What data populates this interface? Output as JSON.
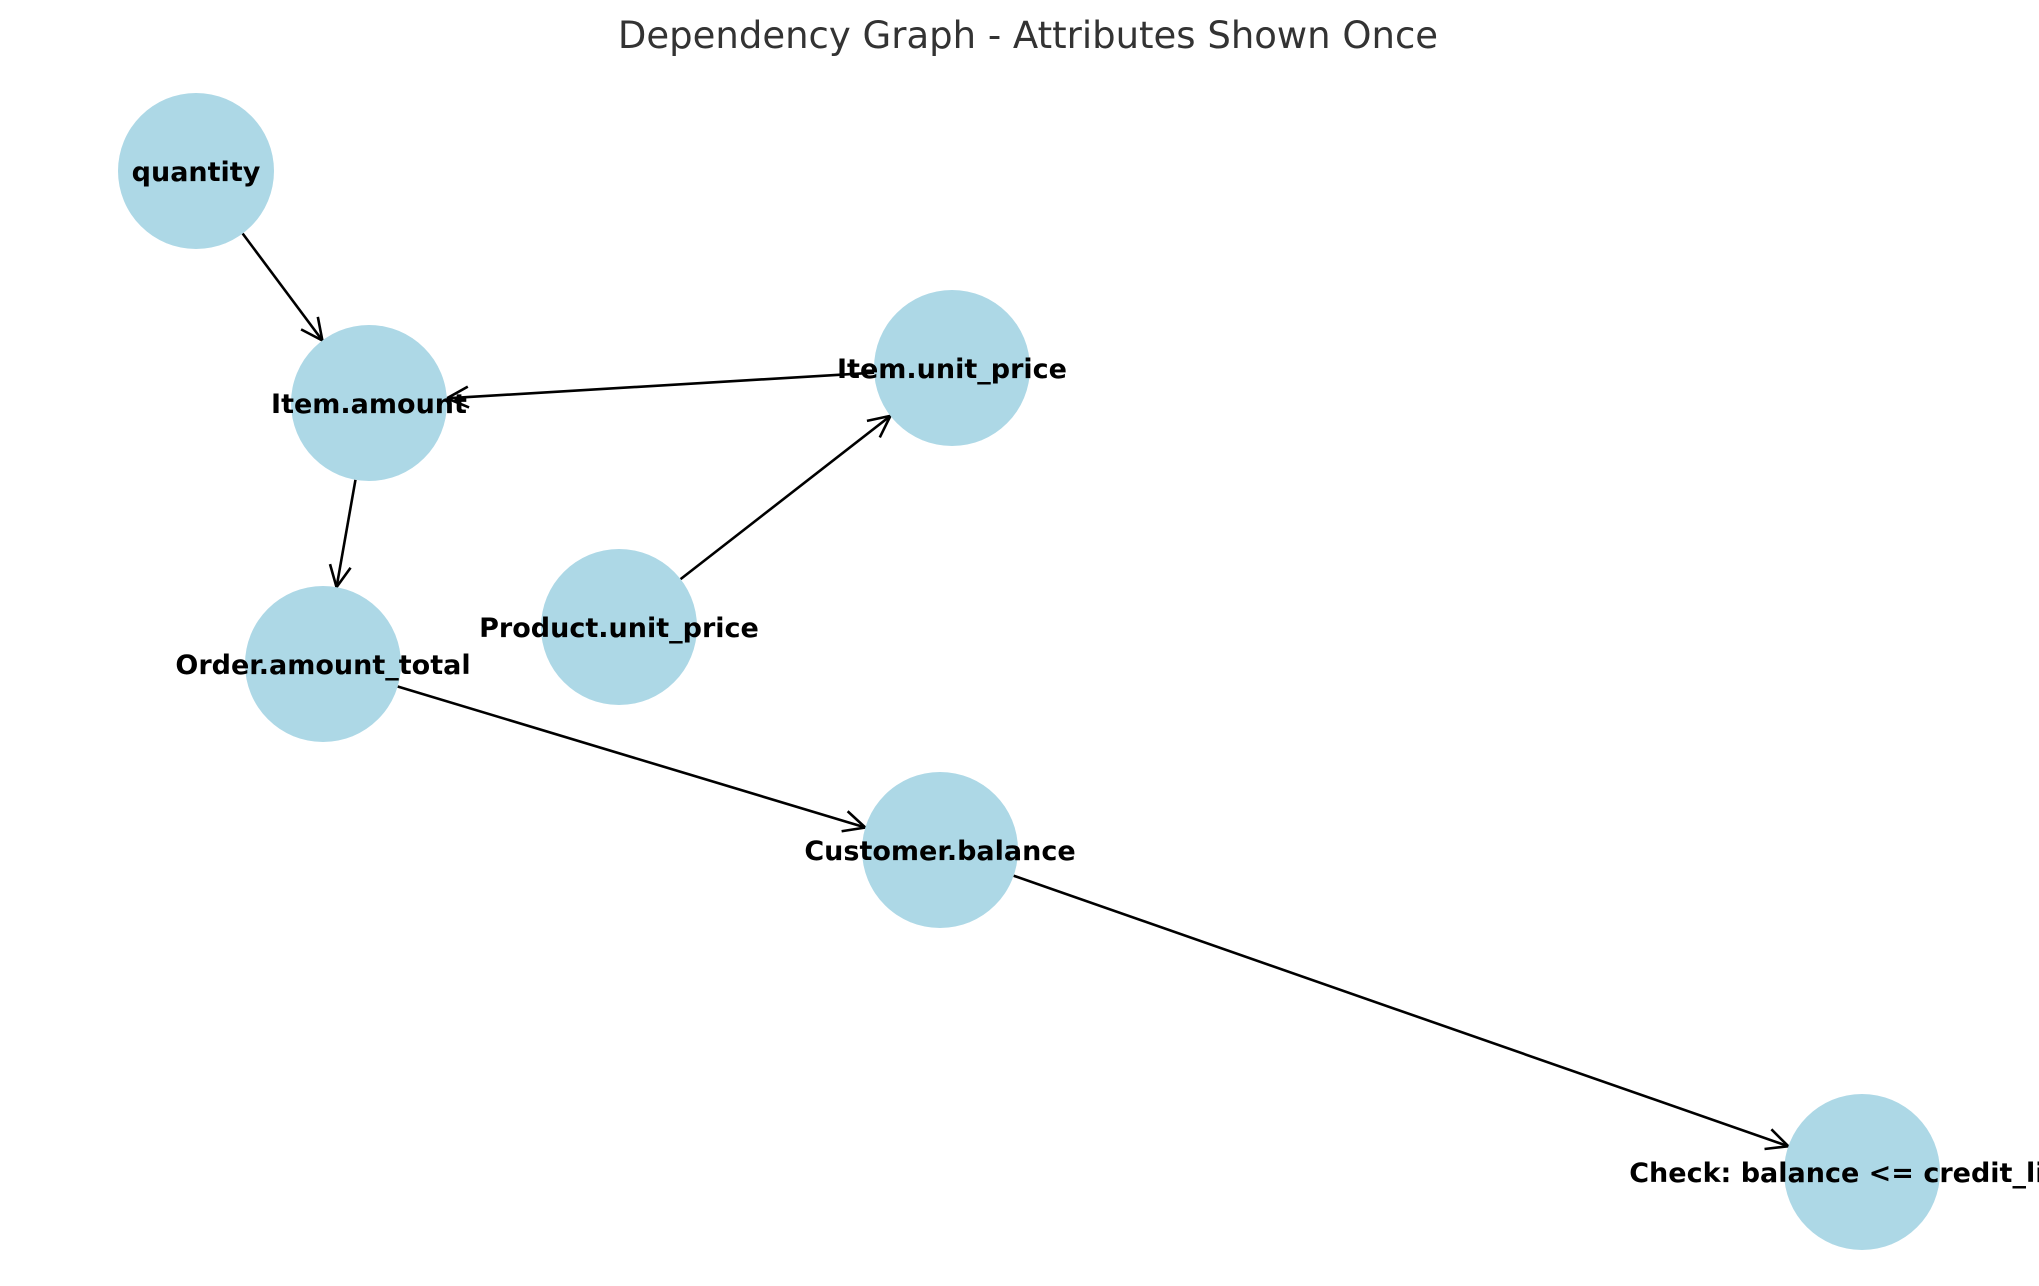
{
  "diagram": {
    "title": "Dependency Graph - Attributes Shown Once",
    "title_color": "#333333",
    "node_color": "#add8e6",
    "edge_color": "#000000",
    "nodes": [
      {
        "id": "quantity",
        "label": "quantity"
      },
      {
        "id": "item_amount",
        "label": "Item.amount"
      },
      {
        "id": "item_unit_price",
        "label": "Item.unit_price"
      },
      {
        "id": "product_unit_price",
        "label": "Product.unit_price"
      },
      {
        "id": "order_amount_total",
        "label": "Order.amount_total"
      },
      {
        "id": "customer_balance",
        "label": "Customer.balance"
      },
      {
        "id": "check_balance",
        "label": "Check: balance <= credit_limit"
      }
    ],
    "edges": [
      {
        "from": "quantity",
        "to": "item_amount"
      },
      {
        "from": "item_unit_price",
        "to": "item_amount"
      },
      {
        "from": "product_unit_price",
        "to": "item_unit_price"
      },
      {
        "from": "item_amount",
        "to": "order_amount_total"
      },
      {
        "from": "order_amount_total",
        "to": "customer_balance"
      },
      {
        "from": "customer_balance",
        "to": "check_balance"
      }
    ]
  }
}
